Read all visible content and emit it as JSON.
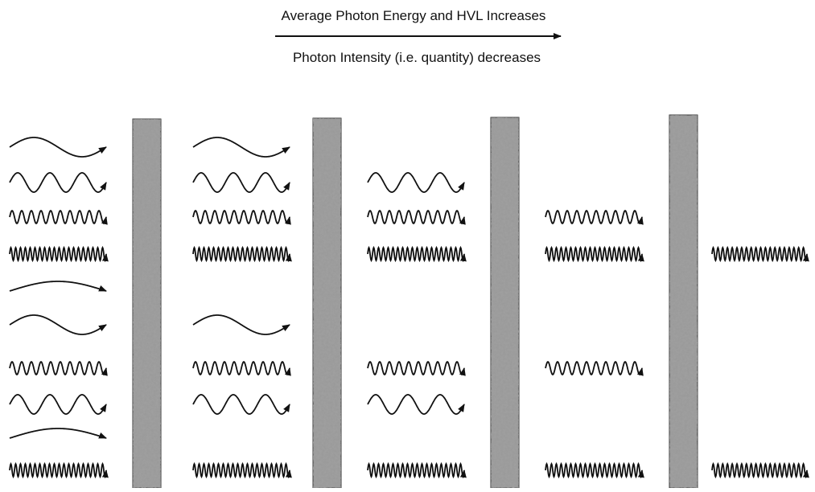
{
  "header": {
    "top_label": "Average Photon Energy and HVL Increases",
    "bottom_label": "Photon Intensity (i.e. quantity) decreases"
  }
}
